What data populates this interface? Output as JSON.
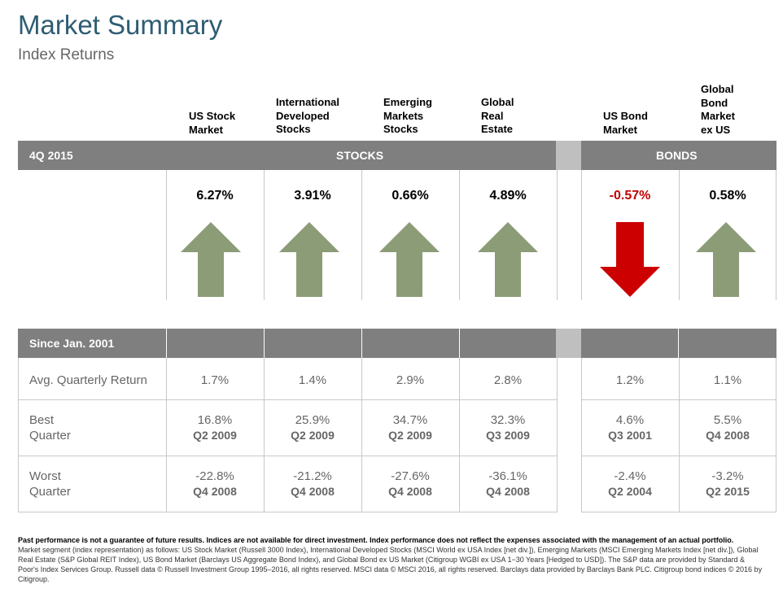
{
  "title": "Market Summary",
  "subtitle": "Index Returns",
  "columns": [
    {
      "id": "us-stock",
      "header": [
        "US Stock",
        "Market"
      ]
    },
    {
      "id": "intl-dev",
      "header": [
        "International",
        "Developed",
        "Stocks"
      ]
    },
    {
      "id": "emerging",
      "header": [
        "Emerging",
        "Markets",
        "Stocks"
      ]
    },
    {
      "id": "global-re",
      "header": [
        "Global",
        "Real",
        "Estate"
      ]
    },
    {
      "id": "us-bond",
      "header": [
        "US Bond",
        "Market"
      ]
    },
    {
      "id": "global-bond",
      "header": [
        "Global",
        "Bond",
        "Market",
        "ex US"
      ]
    }
  ],
  "quarter_bar": {
    "period": "4Q 2015",
    "stocks": "STOCKS",
    "bonds": "BONDS"
  },
  "returns": [
    {
      "value": "6.27%",
      "direction": "up"
    },
    {
      "value": "3.91%",
      "direction": "up"
    },
    {
      "value": "0.66%",
      "direction": "up"
    },
    {
      "value": "4.89%",
      "direction": "up"
    },
    {
      "value": "-0.57%",
      "direction": "down"
    },
    {
      "value": "0.58%",
      "direction": "up"
    }
  ],
  "colors": {
    "up": "#8b9c77",
    "down": "#cc0000",
    "bar": "#7f7f7f",
    "title": "#2e5d73"
  },
  "since_bar": {
    "label": "Since Jan. 2001"
  },
  "stats": {
    "avg_label": "Avg. Quarterly Return",
    "best_label": [
      "Best",
      "Quarter"
    ],
    "worst_label": [
      "Worst",
      "Quarter"
    ],
    "avg": [
      "1.7%",
      "1.4%",
      "2.9%",
      "2.8%",
      "1.2%",
      "1.1%"
    ],
    "best": [
      {
        "value": "16.8%",
        "quarter": "Q2 2009"
      },
      {
        "value": "25.9%",
        "quarter": "Q2 2009"
      },
      {
        "value": "34.7%",
        "quarter": "Q2 2009"
      },
      {
        "value": "32.3%",
        "quarter": "Q3 2009"
      },
      {
        "value": "4.6%",
        "quarter": "Q3 2001"
      },
      {
        "value": "5.5%",
        "quarter": "Q4 2008"
      }
    ],
    "worst": [
      {
        "value": "-22.8%",
        "quarter": "Q4 2008"
      },
      {
        "value": "-21.2%",
        "quarter": "Q4 2008"
      },
      {
        "value": "-27.6%",
        "quarter": "Q4 2008"
      },
      {
        "value": "-36.1%",
        "quarter": "Q4 2008"
      },
      {
        "value": "-2.4%",
        "quarter": "Q2 2004"
      },
      {
        "value": "-3.2%",
        "quarter": "Q2 2015"
      }
    ]
  },
  "footnote": {
    "bold": "Past performance is not a guarantee of future results. Indices are not available for direct investment. Index performance does not reflect the expenses associated with the management of an actual portfolio.",
    "text": "Market segment (index representation) as follows: US Stock Market (Russell 3000 Index), International Developed Stocks (MSCI World ex USA Index [net div.]), Emerging Markets (MSCI Emerging Markets Index [net div.]), Global Real Estate (S&P Global REIT Index), US Bond Market (Barclays US Aggregate Bond Index), and Global Bond ex US Market (Citigroup WGBI ex USA 1−30 Years [Hedged to USD]). The S&P data are provided by Standard & Poor's Index Services Group. Russell data © Russell Investment Group 1995–2016, all rights reserved. MSCI data © MSCI 2016, all rights reserved. Barclays data provided by Barclays Bank PLC. Citigroup bond indices © 2016 by Citigroup."
  }
}
